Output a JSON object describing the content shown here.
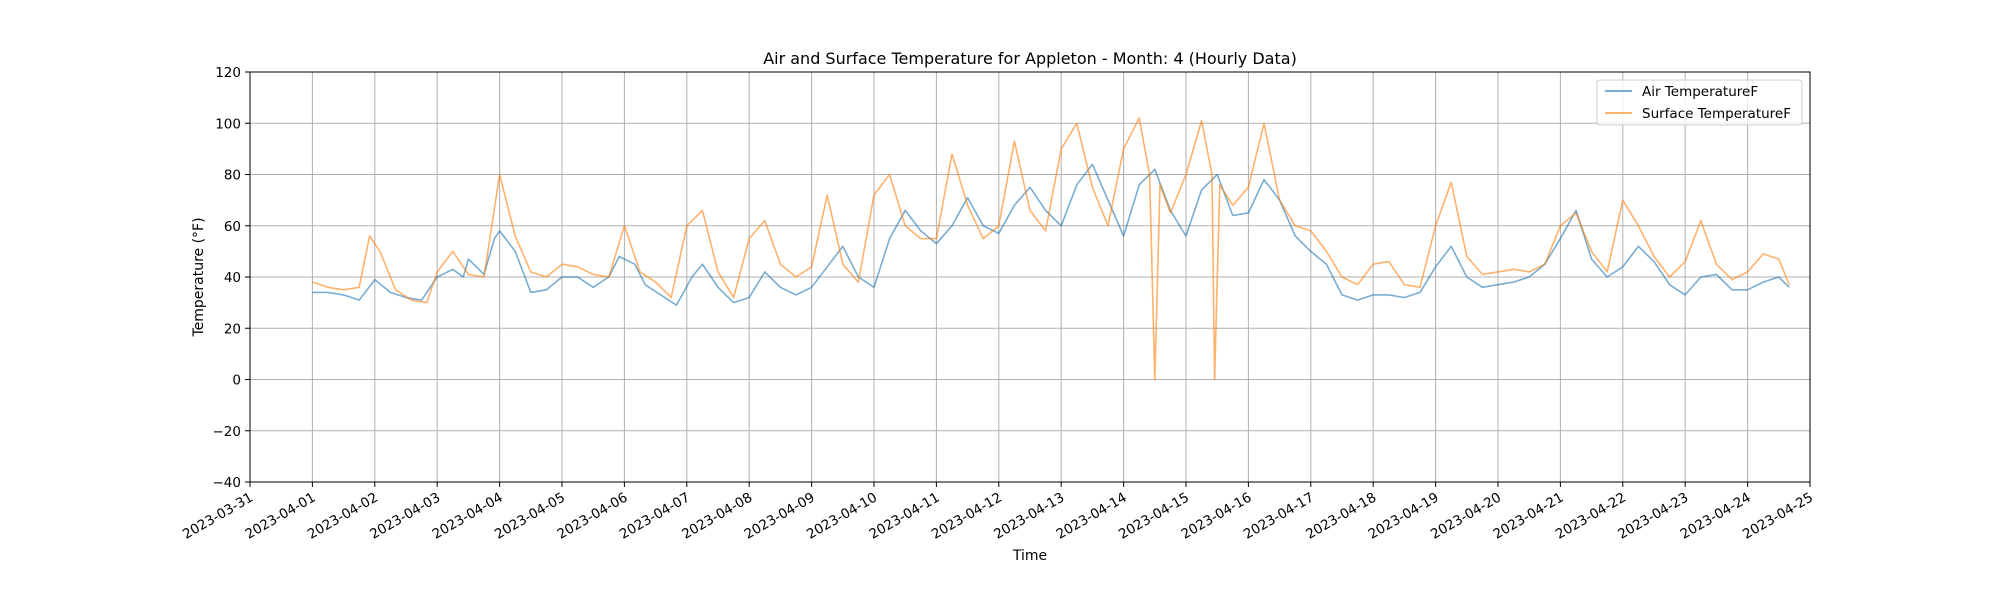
{
  "chart_data": {
    "type": "line",
    "title": "Air and Surface Temperature for Appleton - Month: 4 (Hourly Data)",
    "xlabel": "Time",
    "ylabel": "Temperature (°F)",
    "xlim": [
      "2023-03-31",
      "2023-04-25"
    ],
    "ylim": [
      -40,
      120
    ],
    "yticks": [
      -40,
      -20,
      0,
      20,
      40,
      60,
      80,
      100,
      120
    ],
    "xticks": [
      "2023-03-31",
      "2023-04-01",
      "2023-04-02",
      "2023-04-03",
      "2023-04-04",
      "2023-04-05",
      "2023-04-06",
      "2023-04-07",
      "2023-04-08",
      "2023-04-09",
      "2023-04-10",
      "2023-04-11",
      "2023-04-12",
      "2023-04-13",
      "2023-04-14",
      "2023-04-15",
      "2023-04-16",
      "2023-04-17",
      "2023-04-18",
      "2023-04-19",
      "2023-04-20",
      "2023-04-21",
      "2023-04-22",
      "2023-04-23",
      "2023-04-24",
      "2023-04-25"
    ],
    "grid": true,
    "legend_position": "top-right",
    "series": [
      {
        "name": "Air TemperatureF",
        "color": "#1f77b4",
        "points": [
          [
            "2023-04-01 00:00",
            34
          ],
          [
            "2023-04-01 06:00",
            34
          ],
          [
            "2023-04-01 12:00",
            33
          ],
          [
            "2023-04-01 18:00",
            31
          ],
          [
            "2023-04-02 00:00",
            39
          ],
          [
            "2023-04-02 06:00",
            34
          ],
          [
            "2023-04-02 12:00",
            32
          ],
          [
            "2023-04-02 18:00",
            31
          ],
          [
            "2023-04-03 00:00",
            40
          ],
          [
            "2023-04-03 06:00",
            43
          ],
          [
            "2023-04-03 10:00",
            40
          ],
          [
            "2023-04-03 12:00",
            47
          ],
          [
            "2023-04-03 18:00",
            41
          ],
          [
            "2023-04-03 22:00",
            55
          ],
          [
            "2023-04-04 00:00",
            58
          ],
          [
            "2023-04-04 06:00",
            50
          ],
          [
            "2023-04-04 12:00",
            34
          ],
          [
            "2023-04-04 18:00",
            35
          ],
          [
            "2023-04-05 00:00",
            40
          ],
          [
            "2023-04-05 06:00",
            40
          ],
          [
            "2023-04-05 12:00",
            36
          ],
          [
            "2023-04-05 18:00",
            40
          ],
          [
            "2023-04-05 22:00",
            48
          ],
          [
            "2023-04-06 04:00",
            45
          ],
          [
            "2023-04-06 08:00",
            37
          ],
          [
            "2023-04-06 14:00",
            33
          ],
          [
            "2023-04-06 20:00",
            29
          ],
          [
            "2023-04-07 02:00",
            40
          ],
          [
            "2023-04-07 06:00",
            45
          ],
          [
            "2023-04-07 12:00",
            36
          ],
          [
            "2023-04-07 18:00",
            30
          ],
          [
            "2023-04-08 00:00",
            32
          ],
          [
            "2023-04-08 06:00",
            42
          ],
          [
            "2023-04-08 12:00",
            36
          ],
          [
            "2023-04-08 18:00",
            33
          ],
          [
            "2023-04-09 00:00",
            36
          ],
          [
            "2023-04-09 06:00",
            44
          ],
          [
            "2023-04-09 12:00",
            52
          ],
          [
            "2023-04-09 18:00",
            40
          ],
          [
            "2023-04-10 00:00",
            36
          ],
          [
            "2023-04-10 06:00",
            55
          ],
          [
            "2023-04-10 12:00",
            66
          ],
          [
            "2023-04-10 18:00",
            58
          ],
          [
            "2023-04-11 00:00",
            53
          ],
          [
            "2023-04-11 06:00",
            60
          ],
          [
            "2023-04-11 12:00",
            71
          ],
          [
            "2023-04-11 18:00",
            60
          ],
          [
            "2023-04-12 00:00",
            57
          ],
          [
            "2023-04-12 06:00",
            68
          ],
          [
            "2023-04-12 12:00",
            75
          ],
          [
            "2023-04-12 18:00",
            66
          ],
          [
            "2023-04-13 00:00",
            60
          ],
          [
            "2023-04-13 06:00",
            76
          ],
          [
            "2023-04-13 12:00",
            84
          ],
          [
            "2023-04-13 18:00",
            70
          ],
          [
            "2023-04-14 00:00",
            56
          ],
          [
            "2023-04-14 06:00",
            76
          ],
          [
            "2023-04-14 12:00",
            82
          ],
          [
            "2023-04-14 18:00",
            66
          ],
          [
            "2023-04-15 00:00",
            56
          ],
          [
            "2023-04-15 06:00",
            74
          ],
          [
            "2023-04-15 12:00",
            80
          ],
          [
            "2023-04-15 18:00",
            64
          ],
          [
            "2023-04-16 00:00",
            65
          ],
          [
            "2023-04-16 06:00",
            78
          ],
          [
            "2023-04-16 12:00",
            70
          ],
          [
            "2023-04-16 18:00",
            56
          ],
          [
            "2023-04-17 00:00",
            50
          ],
          [
            "2023-04-17 06:00",
            45
          ],
          [
            "2023-04-17 12:00",
            33
          ],
          [
            "2023-04-17 18:00",
            31
          ],
          [
            "2023-04-18 00:00",
            33
          ],
          [
            "2023-04-18 06:00",
            33
          ],
          [
            "2023-04-18 12:00",
            32
          ],
          [
            "2023-04-18 18:00",
            34
          ],
          [
            "2023-04-19 00:00",
            44
          ],
          [
            "2023-04-19 06:00",
            52
          ],
          [
            "2023-04-19 12:00",
            40
          ],
          [
            "2023-04-19 18:00",
            36
          ],
          [
            "2023-04-20 00:00",
            37
          ],
          [
            "2023-04-20 06:00",
            38
          ],
          [
            "2023-04-20 12:00",
            40
          ],
          [
            "2023-04-20 18:00",
            45
          ],
          [
            "2023-04-21 00:00",
            55
          ],
          [
            "2023-04-21 06:00",
            66
          ],
          [
            "2023-04-21 12:00",
            47
          ],
          [
            "2023-04-21 18:00",
            40
          ],
          [
            "2023-04-22 00:00",
            44
          ],
          [
            "2023-04-22 06:00",
            52
          ],
          [
            "2023-04-22 12:00",
            46
          ],
          [
            "2023-04-22 18:00",
            37
          ],
          [
            "2023-04-23 00:00",
            33
          ],
          [
            "2023-04-23 06:00",
            40
          ],
          [
            "2023-04-23 12:00",
            41
          ],
          [
            "2023-04-23 18:00",
            35
          ],
          [
            "2023-04-24 00:00",
            35
          ],
          [
            "2023-04-24 06:00",
            38
          ],
          [
            "2023-04-24 12:00",
            40
          ],
          [
            "2023-04-24 16:00",
            36
          ]
        ]
      },
      {
        "name": "Surface TemperatureF",
        "color": "#ff7f0e",
        "points": [
          [
            "2023-04-01 00:00",
            38
          ],
          [
            "2023-04-01 06:00",
            36
          ],
          [
            "2023-04-01 12:00",
            35
          ],
          [
            "2023-04-01 18:00",
            36
          ],
          [
            "2023-04-01 22:00",
            56
          ],
          [
            "2023-04-02 02:00",
            50
          ],
          [
            "2023-04-02 08:00",
            35
          ],
          [
            "2023-04-02 14:00",
            31
          ],
          [
            "2023-04-02 20:00",
            30
          ],
          [
            "2023-04-03 00:00",
            42
          ],
          [
            "2023-04-03 06:00",
            50
          ],
          [
            "2023-04-03 12:00",
            41
          ],
          [
            "2023-04-03 18:00",
            40
          ],
          [
            "2023-04-04 00:00",
            80
          ],
          [
            "2023-04-04 06:00",
            56
          ],
          [
            "2023-04-04 12:00",
            42
          ],
          [
            "2023-04-04 18:00",
            40
          ],
          [
            "2023-04-05 00:00",
            45
          ],
          [
            "2023-04-05 06:00",
            44
          ],
          [
            "2023-04-05 12:00",
            41
          ],
          [
            "2023-04-05 18:00",
            40
          ],
          [
            "2023-04-06 00:00",
            60
          ],
          [
            "2023-04-06 06:00",
            42
          ],
          [
            "2023-04-06 12:00",
            38
          ],
          [
            "2023-04-06 18:00",
            32
          ],
          [
            "2023-04-07 00:00",
            60
          ],
          [
            "2023-04-07 06:00",
            66
          ],
          [
            "2023-04-07 12:00",
            42
          ],
          [
            "2023-04-07 18:00",
            32
          ],
          [
            "2023-04-08 00:00",
            55
          ],
          [
            "2023-04-08 06:00",
            62
          ],
          [
            "2023-04-08 12:00",
            45
          ],
          [
            "2023-04-08 18:00",
            40
          ],
          [
            "2023-04-09 00:00",
            44
          ],
          [
            "2023-04-09 06:00",
            72
          ],
          [
            "2023-04-09 12:00",
            45
          ],
          [
            "2023-04-09 18:00",
            38
          ],
          [
            "2023-04-10 00:00",
            72
          ],
          [
            "2023-04-10 06:00",
            80
          ],
          [
            "2023-04-10 12:00",
            60
          ],
          [
            "2023-04-10 18:00",
            55
          ],
          [
            "2023-04-11 00:00",
            55
          ],
          [
            "2023-04-11 06:00",
            88
          ],
          [
            "2023-04-11 12:00",
            68
          ],
          [
            "2023-04-11 18:00",
            55
          ],
          [
            "2023-04-12 00:00",
            60
          ],
          [
            "2023-04-12 06:00",
            93
          ],
          [
            "2023-04-12 12:00",
            66
          ],
          [
            "2023-04-12 18:00",
            58
          ],
          [
            "2023-04-13 00:00",
            90
          ],
          [
            "2023-04-13 06:00",
            100
          ],
          [
            "2023-04-13 12:00",
            75
          ],
          [
            "2023-04-13 18:00",
            60
          ],
          [
            "2023-04-14 00:00",
            90
          ],
          [
            "2023-04-14 06:00",
            102
          ],
          [
            "2023-04-14 10:00",
            80
          ],
          [
            "2023-04-14 12:00",
            0
          ],
          [
            "2023-04-14 14:00",
            76
          ],
          [
            "2023-04-14 18:00",
            65
          ],
          [
            "2023-04-15 00:00",
            80
          ],
          [
            "2023-04-15 06:00",
            101
          ],
          [
            "2023-04-15 10:00",
            80
          ],
          [
            "2023-04-15 11:00",
            0
          ],
          [
            "2023-04-15 13:00",
            76
          ],
          [
            "2023-04-15 18:00",
            68
          ],
          [
            "2023-04-16 00:00",
            75
          ],
          [
            "2023-04-16 06:00",
            100
          ],
          [
            "2023-04-16 12:00",
            70
          ],
          [
            "2023-04-16 18:00",
            60
          ],
          [
            "2023-04-17 00:00",
            58
          ],
          [
            "2023-04-17 06:00",
            50
          ],
          [
            "2023-04-17 12:00",
            40
          ],
          [
            "2023-04-17 18:00",
            37
          ],
          [
            "2023-04-18 00:00",
            45
          ],
          [
            "2023-04-18 06:00",
            46
          ],
          [
            "2023-04-18 12:00",
            37
          ],
          [
            "2023-04-18 18:00",
            36
          ],
          [
            "2023-04-19 00:00",
            60
          ],
          [
            "2023-04-19 06:00",
            77
          ],
          [
            "2023-04-19 12:00",
            48
          ],
          [
            "2023-04-19 18:00",
            41
          ],
          [
            "2023-04-20 00:00",
            42
          ],
          [
            "2023-04-20 06:00",
            43
          ],
          [
            "2023-04-20 12:00",
            42
          ],
          [
            "2023-04-20 18:00",
            45
          ],
          [
            "2023-04-21 00:00",
            60
          ],
          [
            "2023-04-21 06:00",
            65
          ],
          [
            "2023-04-21 12:00",
            50
          ],
          [
            "2023-04-21 18:00",
            42
          ],
          [
            "2023-04-22 00:00",
            70
          ],
          [
            "2023-04-22 06:00",
            60
          ],
          [
            "2023-04-22 12:00",
            48
          ],
          [
            "2023-04-22 18:00",
            40
          ],
          [
            "2023-04-23 00:00",
            46
          ],
          [
            "2023-04-23 06:00",
            62
          ],
          [
            "2023-04-23 12:00",
            45
          ],
          [
            "2023-04-23 18:00",
            39
          ],
          [
            "2023-04-24 00:00",
            42
          ],
          [
            "2023-04-24 06:00",
            49
          ],
          [
            "2023-04-24 12:00",
            47
          ],
          [
            "2023-04-24 16:00",
            37
          ]
        ]
      }
    ]
  }
}
